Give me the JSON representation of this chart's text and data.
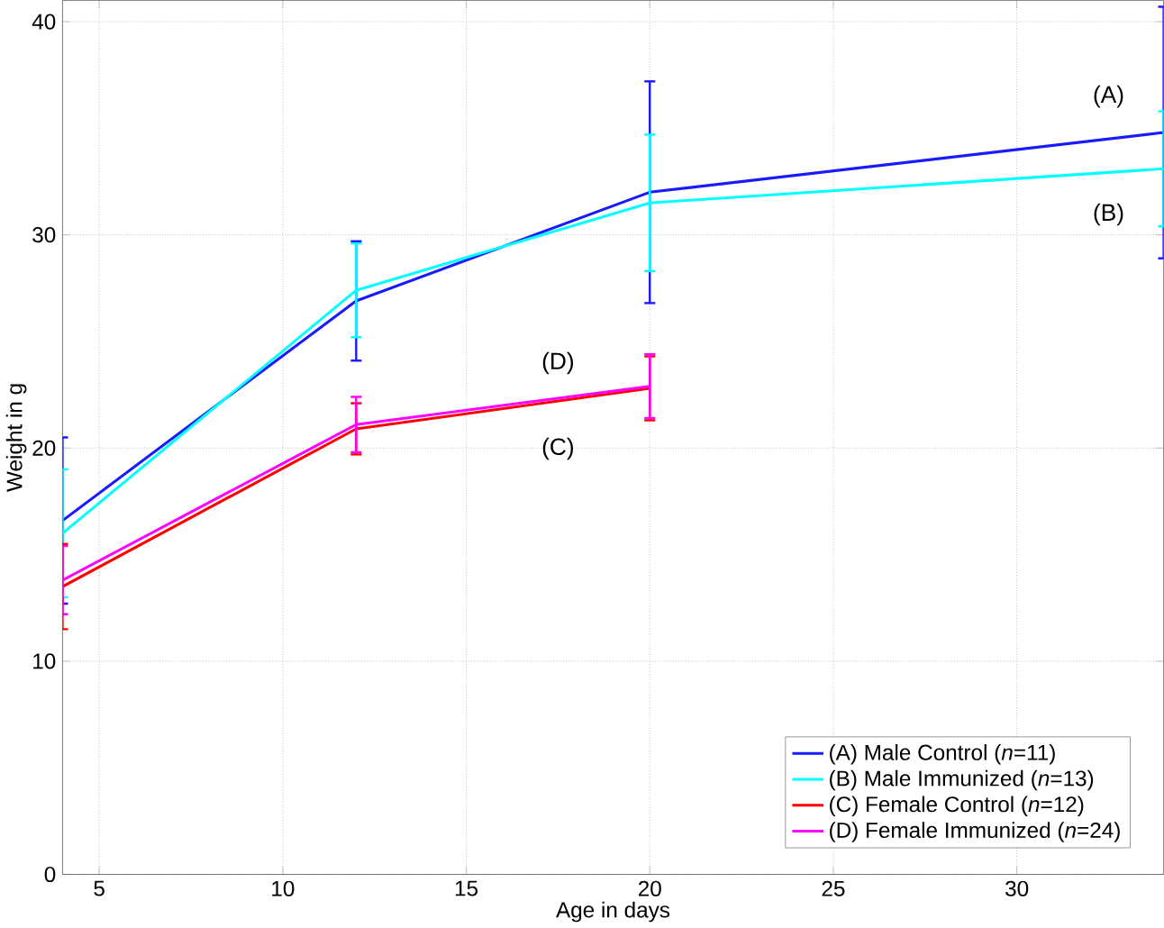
{
  "chart_data": {
    "type": "line",
    "xlabel": "Age in days",
    "ylabel": "Weight in g",
    "x": [
      4,
      12,
      20,
      34
    ],
    "series": [
      {
        "name": "(A) Male Control (*n*=11)",
        "color": "#1a1aff",
        "values": [
          16.6,
          26.9,
          32.0,
          34.8
        ],
        "errors": [
          3.9,
          2.8,
          5.2,
          5.9
        ]
      },
      {
        "name": "(B) Male Immunized (*n*=13)",
        "color": "#00ffff",
        "values": [
          16.0,
          27.4,
          31.5,
          33.1
        ],
        "errors": [
          3.0,
          2.2,
          3.2,
          2.7
        ]
      },
      {
        "name": "(C) Female Control (*n*=12)",
        "color": "#ff0000",
        "values": [
          13.5,
          20.9,
          22.8,
          null
        ],
        "errors": [
          2.0,
          1.2,
          1.5,
          null
        ]
      },
      {
        "name": "(D) Female Immunized (*n*=24)",
        "color": "#ff00ff",
        "values": [
          13.8,
          21.1,
          22.9,
          null
        ],
        "errors": [
          1.6,
          1.3,
          1.5,
          null
        ]
      }
    ],
    "annotations": [
      "(A)",
      "(B)",
      "(D)",
      "(C)"
    ],
    "xlim": [
      4,
      34
    ],
    "ylim": [
      0,
      41
    ],
    "xticks": [
      5,
      10,
      15,
      20,
      25,
      30
    ],
    "yticks": [
      0,
      10,
      20,
      30,
      40
    ],
    "grid": true,
    "legend": "bottom right"
  }
}
